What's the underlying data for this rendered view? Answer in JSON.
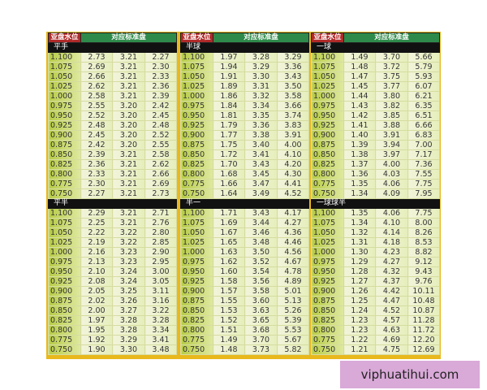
{
  "header": {
    "water_level": "亚盘水位",
    "standard_odds": "对应标准盘"
  },
  "panels": [
    {
      "sections": [
        {
          "label": "平手",
          "rows": [
            [
              "1.100",
              "2.73",
              "3.21",
              "2.27"
            ],
            [
              "1.075",
              "2.69",
              "3.21",
              "2.30"
            ],
            [
              "1.050",
              "2.66",
              "3.21",
              "2.33"
            ],
            [
              "1.025",
              "2.62",
              "3.21",
              "2.36"
            ],
            [
              "1.000",
              "2.58",
              "3.21",
              "2.39"
            ],
            [
              "0.975",
              "2.55",
              "3.20",
              "2.42"
            ],
            [
              "0.950",
              "2.52",
              "3.20",
              "2.45"
            ],
            [
              "0.925",
              "2.48",
              "3.20",
              "2.48"
            ],
            [
              "0.900",
              "2.45",
              "3.20",
              "2.52"
            ],
            [
              "0.875",
              "2.42",
              "3.20",
              "2.55"
            ],
            [
              "0.850",
              "2.39",
              "3.21",
              "2.58"
            ],
            [
              "0.825",
              "2.36",
              "3.21",
              "2.62"
            ],
            [
              "0.800",
              "2.33",
              "3.21",
              "2.66"
            ],
            [
              "0.775",
              "2.30",
              "3.21",
              "2.69"
            ],
            [
              "0.750",
              "2.27",
              "3.21",
              "2.73"
            ]
          ]
        },
        {
          "label": "平半",
          "rows": [
            [
              "1.100",
              "2.29",
              "3.21",
              "2.71"
            ],
            [
              "1.075",
              "2.25",
              "3.21",
              "2.76"
            ],
            [
              "1.050",
              "2.22",
              "3.22",
              "2.80"
            ],
            [
              "1.025",
              "2.19",
              "3.22",
              "2.85"
            ],
            [
              "1.000",
              "2.16",
              "3.23",
              "2.90"
            ],
            [
              "0.975",
              "2.13",
              "3.23",
              "2.95"
            ],
            [
              "0.950",
              "2.10",
              "3.24",
              "3.00"
            ],
            [
              "0.925",
              "2.08",
              "3.24",
              "3.05"
            ],
            [
              "0.900",
              "2.05",
              "3.25",
              "3.11"
            ],
            [
              "0.875",
              "2.02",
              "3.26",
              "3.16"
            ],
            [
              "0.850",
              "2.00",
              "3.27",
              "3.22"
            ],
            [
              "0.825",
              "1.97",
              "3.28",
              "3.28"
            ],
            [
              "0.800",
              "1.95",
              "3.28",
              "3.34"
            ],
            [
              "0.775",
              "1.92",
              "3.29",
              "3.41"
            ],
            [
              "0.750",
              "1.90",
              "3.30",
              "3.48"
            ]
          ]
        }
      ]
    },
    {
      "sections": [
        {
          "label": "半球",
          "rows": [
            [
              "1.100",
              "1.97",
              "3.28",
              "3.29"
            ],
            [
              "1.075",
              "1.94",
              "3.29",
              "3.36"
            ],
            [
              "1.050",
              "1.91",
              "3.30",
              "3.43"
            ],
            [
              "1.025",
              "1.89",
              "3.31",
              "3.50"
            ],
            [
              "1.000",
              "1.86",
              "3.32",
              "3.58"
            ],
            [
              "0.975",
              "1.84",
              "3.34",
              "3.66"
            ],
            [
              "0.950",
              "1.81",
              "3.35",
              "3.74"
            ],
            [
              "0.925",
              "1.79",
              "3.36",
              "3.83"
            ],
            [
              "0.900",
              "1.77",
              "3.38",
              "3.91"
            ],
            [
              "0.875",
              "1.75",
              "3.40",
              "4.00"
            ],
            [
              "0.850",
              "1.72",
              "3.41",
              "4.10"
            ],
            [
              "0.825",
              "1.70",
              "3.43",
              "4.20"
            ],
            [
              "0.800",
              "1.68",
              "3.45",
              "4.30"
            ],
            [
              "0.775",
              "1.66",
              "3.47",
              "4.41"
            ],
            [
              "0.750",
              "1.64",
              "3.49",
              "4.52"
            ]
          ]
        },
        {
          "label": "半一",
          "rows": [
            [
              "1.100",
              "1.71",
              "3.43",
              "4.17"
            ],
            [
              "1.075",
              "1.69",
              "3.44",
              "4.27"
            ],
            [
              "1.050",
              "1.67",
              "3.46",
              "4.36"
            ],
            [
              "1.025",
              "1.65",
              "3.48",
              "4.46"
            ],
            [
              "1.000",
              "1.63",
              "3.50",
              "4.56"
            ],
            [
              "0.975",
              "1.62",
              "3.52",
              "4.67"
            ],
            [
              "0.950",
              "1.60",
              "3.54",
              "4.78"
            ],
            [
              "0.925",
              "1.58",
              "3.56",
              "4.89"
            ],
            [
              "0.900",
              "1.57",
              "3.58",
              "5.01"
            ],
            [
              "0.875",
              "1.55",
              "3.60",
              "5.13"
            ],
            [
              "0.850",
              "1.53",
              "3.63",
              "5.26"
            ],
            [
              "0.825",
              "1.52",
              "3.65",
              "5.39"
            ],
            [
              "0.800",
              "1.51",
              "3.68",
              "5.53"
            ],
            [
              "0.775",
              "1.49",
              "3.70",
              "5.67"
            ],
            [
              "0.750",
              "1.48",
              "3.73",
              "5.82"
            ]
          ]
        }
      ]
    },
    {
      "sections": [
        {
          "label": "一球",
          "rows": [
            [
              "1.100",
              "1.49",
              "3.70",
              "5.66"
            ],
            [
              "1.075",
              "1.48",
              "3.72",
              "5.79"
            ],
            [
              "1.050",
              "1.47",
              "3.75",
              "5.93"
            ],
            [
              "1.025",
              "1.45",
              "3.77",
              "6.07"
            ],
            [
              "1.000",
              "1.44",
              "3.80",
              "6.21"
            ],
            [
              "0.975",
              "1.43",
              "3.82",
              "6.35"
            ],
            [
              "0.950",
              "1.42",
              "3.85",
              "6.51"
            ],
            [
              "0.925",
              "1.41",
              "3.88",
              "6.66"
            ],
            [
              "0.900",
              "1.40",
              "3.91",
              "6.83"
            ],
            [
              "0.875",
              "1.39",
              "3.94",
              "7.00"
            ],
            [
              "0.850",
              "1.38",
              "3.97",
              "7.17"
            ],
            [
              "0.825",
              "1.37",
              "4.00",
              "7.36"
            ],
            [
              "0.800",
              "1.36",
              "4.03",
              "7.55"
            ],
            [
              "0.775",
              "1.35",
              "4.06",
              "7.75"
            ],
            [
              "0.750",
              "1.34",
              "4.09",
              "7.95"
            ]
          ]
        },
        {
          "label": "一球球半",
          "rows": [
            [
              "1.100",
              "1.35",
              "4.06",
              "7.75"
            ],
            [
              "1.075",
              "1.34",
              "4.10",
              "8.00"
            ],
            [
              "1.050",
              "1.32",
              "4.14",
              "8.26"
            ],
            [
              "1.025",
              "1.31",
              "4.18",
              "8.53"
            ],
            [
              "1.000",
              "1.30",
              "4.23",
              "8.82"
            ],
            [
              "0.975",
              "1.29",
              "4.27",
              "9.12"
            ],
            [
              "0.950",
              "1.28",
              "4.32",
              "9.43"
            ],
            [
              "0.925",
              "1.27",
              "4.37",
              "9.76"
            ],
            [
              "0.900",
              "1.26",
              "4.42",
              "10.11"
            ],
            [
              "0.875",
              "1.25",
              "4.47",
              "10.48"
            ],
            [
              "0.850",
              "1.24",
              "4.52",
              "10.87"
            ],
            [
              "0.825",
              "1.23",
              "4.57",
              "11.28"
            ],
            [
              "0.800",
              "1.23",
              "4.63",
              "11.72"
            ],
            [
              "0.775",
              "1.22",
              "4.69",
              "12.20"
            ],
            [
              "0.750",
              "1.21",
              "4.75",
              "12.69"
            ]
          ]
        }
      ]
    }
  ],
  "watermark": "viphuatihui.com"
}
